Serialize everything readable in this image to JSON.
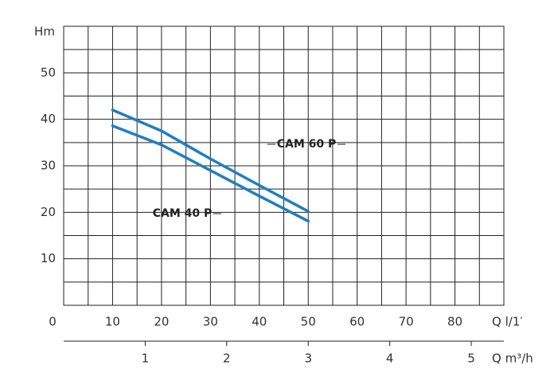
{
  "chart_data": {
    "type": "line",
    "xlabel": "Q l/1′",
    "ylabel": "Hm",
    "xlim": [
      0,
      90
    ],
    "xticks": [
      0,
      10,
      20,
      30,
      40,
      50,
      60,
      70,
      80
    ],
    "x_minor_grid": [
      5,
      15,
      25,
      35,
      45,
      55,
      65,
      75,
      85
    ],
    "ylim": [
      0,
      60
    ],
    "yticks": [
      10,
      20,
      30,
      40,
      50
    ],
    "y_minor_grid": [
      5,
      15,
      25,
      35,
      45,
      55
    ],
    "x2label": "Q m³/h",
    "x2lim": [
      0,
      5.4
    ],
    "x2ticks": [
      1,
      2,
      3,
      4,
      5
    ],
    "grid": true,
    "x": [
      10,
      20,
      30,
      40,
      50
    ],
    "series": [
      {
        "name": "CAM 60 P",
        "color": "#1f7fc1",
        "values": [
          42,
          37.5,
          31.5,
          25.8,
          20.2
        ]
      },
      {
        "name": "CAM 40 P",
        "color": "#1f7fc1",
        "values": [
          38.6,
          34.5,
          29,
          23.5,
          18.1
        ]
      }
    ]
  }
}
